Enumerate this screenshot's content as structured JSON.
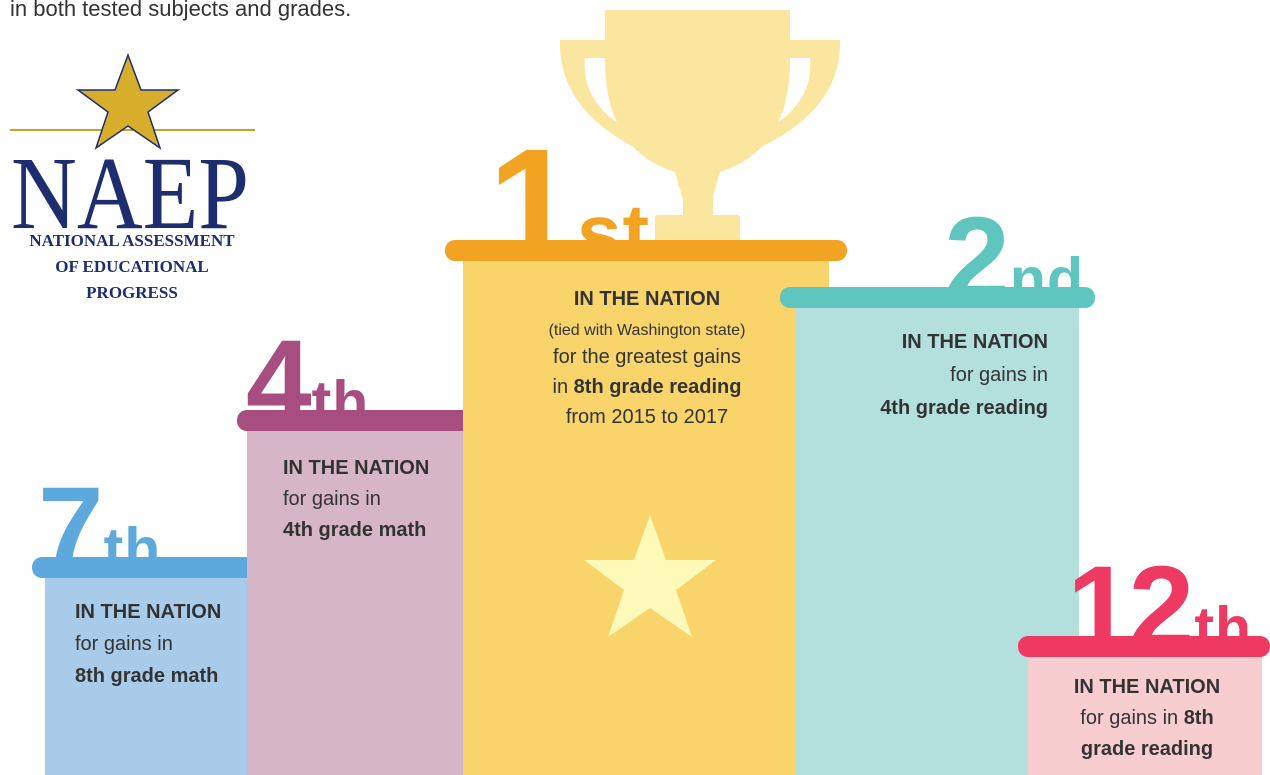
{
  "intro": "in both tested subjects and grades.",
  "logo": {
    "name": "NAEP",
    "lines": [
      "NATIONAL ASSESSMENT",
      "OF EDUCATIONAL",
      "PROGRESS"
    ]
  },
  "podiums": [
    {
      "rank": "7",
      "suffix": "th",
      "lines": [
        [
          {
            "text": "IN THE NATION",
            "bold": true
          }
        ],
        [
          {
            "text": "for gains in",
            "bold": false
          }
        ],
        [
          {
            "text": "8th grade math",
            "bold": true
          }
        ]
      ]
    },
    {
      "rank": "4",
      "suffix": "th",
      "lines": [
        [
          {
            "text": "IN THE NATION",
            "bold": true
          }
        ],
        [
          {
            "text": "for gains in",
            "bold": false
          }
        ],
        [
          {
            "text": "4th grade math",
            "bold": true
          }
        ]
      ]
    },
    {
      "rank": "1",
      "suffix": "st",
      "lines": [
        [
          {
            "text": "IN THE NATION",
            "bold": true
          }
        ],
        [
          {
            "text": "(tied with Washington state)",
            "bold": false
          }
        ],
        [
          {
            "text": "for the greatest gains",
            "bold": false
          }
        ],
        [
          {
            "text": "in ",
            "bold": false
          },
          {
            "text": "8th grade reading",
            "bold": true
          }
        ],
        [
          {
            "text": "from 2015 to 2017",
            "bold": false
          }
        ]
      ]
    },
    {
      "rank": "2",
      "suffix": "nd",
      "lines": [
        [
          {
            "text": "IN THE NATION",
            "bold": true
          }
        ],
        [
          {
            "text": "for gains in",
            "bold": false
          }
        ],
        [
          {
            "text": "4th grade reading",
            "bold": true
          }
        ]
      ]
    },
    {
      "rank": "12",
      "suffix": "th",
      "lines": [
        [
          {
            "text": "IN THE NATION",
            "bold": true
          }
        ],
        [
          {
            "text": "for gains in ",
            "bold": false
          },
          {
            "text": "8th",
            "bold": true
          }
        ],
        [
          {
            "text": "grade reading",
            "bold": true
          }
        ]
      ]
    }
  ]
}
